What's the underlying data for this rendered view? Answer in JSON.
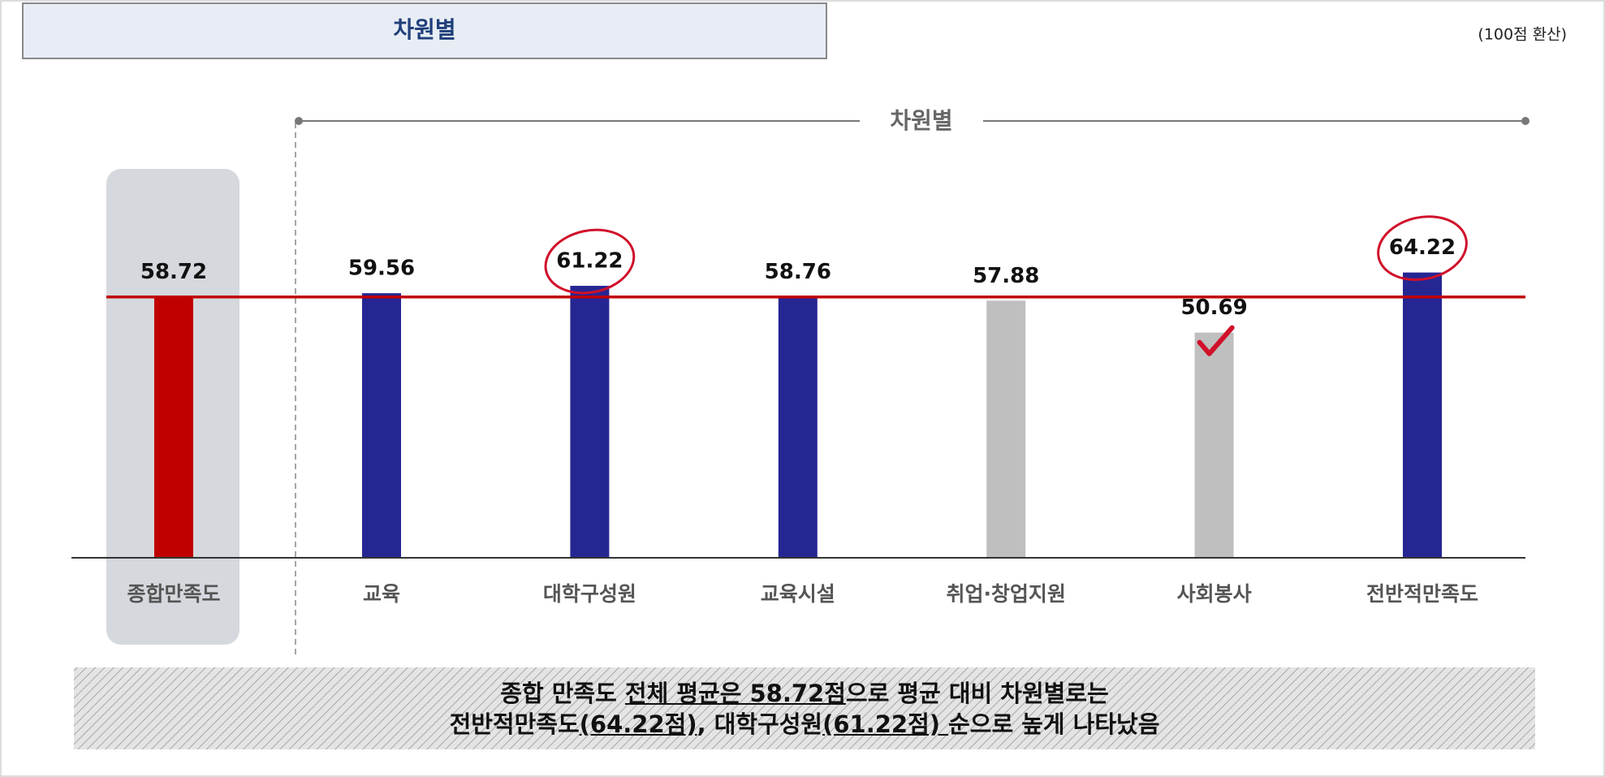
{
  "chart_data": {
    "type": "bar",
    "title": "차원별",
    "unit_note": "(100점 환산)",
    "group_label": "차원별",
    "categories": [
      "종합만족도",
      "교육",
      "대학구성원",
      "교육시설",
      "취업·창업지원",
      "사회봉사",
      "전반적만족도"
    ],
    "series": [
      {
        "colors": [
          "#c00000",
          "#262693",
          "#262693",
          "#262693",
          "#bfbfbf",
          "#bfbfbf",
          "#262693"
        ],
        "values": [
          58.72,
          59.56,
          61.22,
          58.76,
          57.88,
          50.69,
          64.22
        ]
      }
    ],
    "ylim": [
      0,
      70
    ],
    "reference_color": "#c00000",
    "summary": [
      [
        {
          "text": "종합 만족도 "
        },
        {
          "text": "전체 평균은 58.72점",
          "underline": true
        },
        {
          "text": "으로 평균 대비 차원별로는"
        }
      ],
      [
        {
          "text": "전반적만족도"
        },
        {
          "text": "(64.22점)",
          "underline": true
        },
        {
          "text": ", 대학구성원"
        },
        {
          "text": "(61.22점) ",
          "underline": true
        },
        {
          "text": "순으로 높게 나타났음"
        }
      ]
    ]
  }
}
